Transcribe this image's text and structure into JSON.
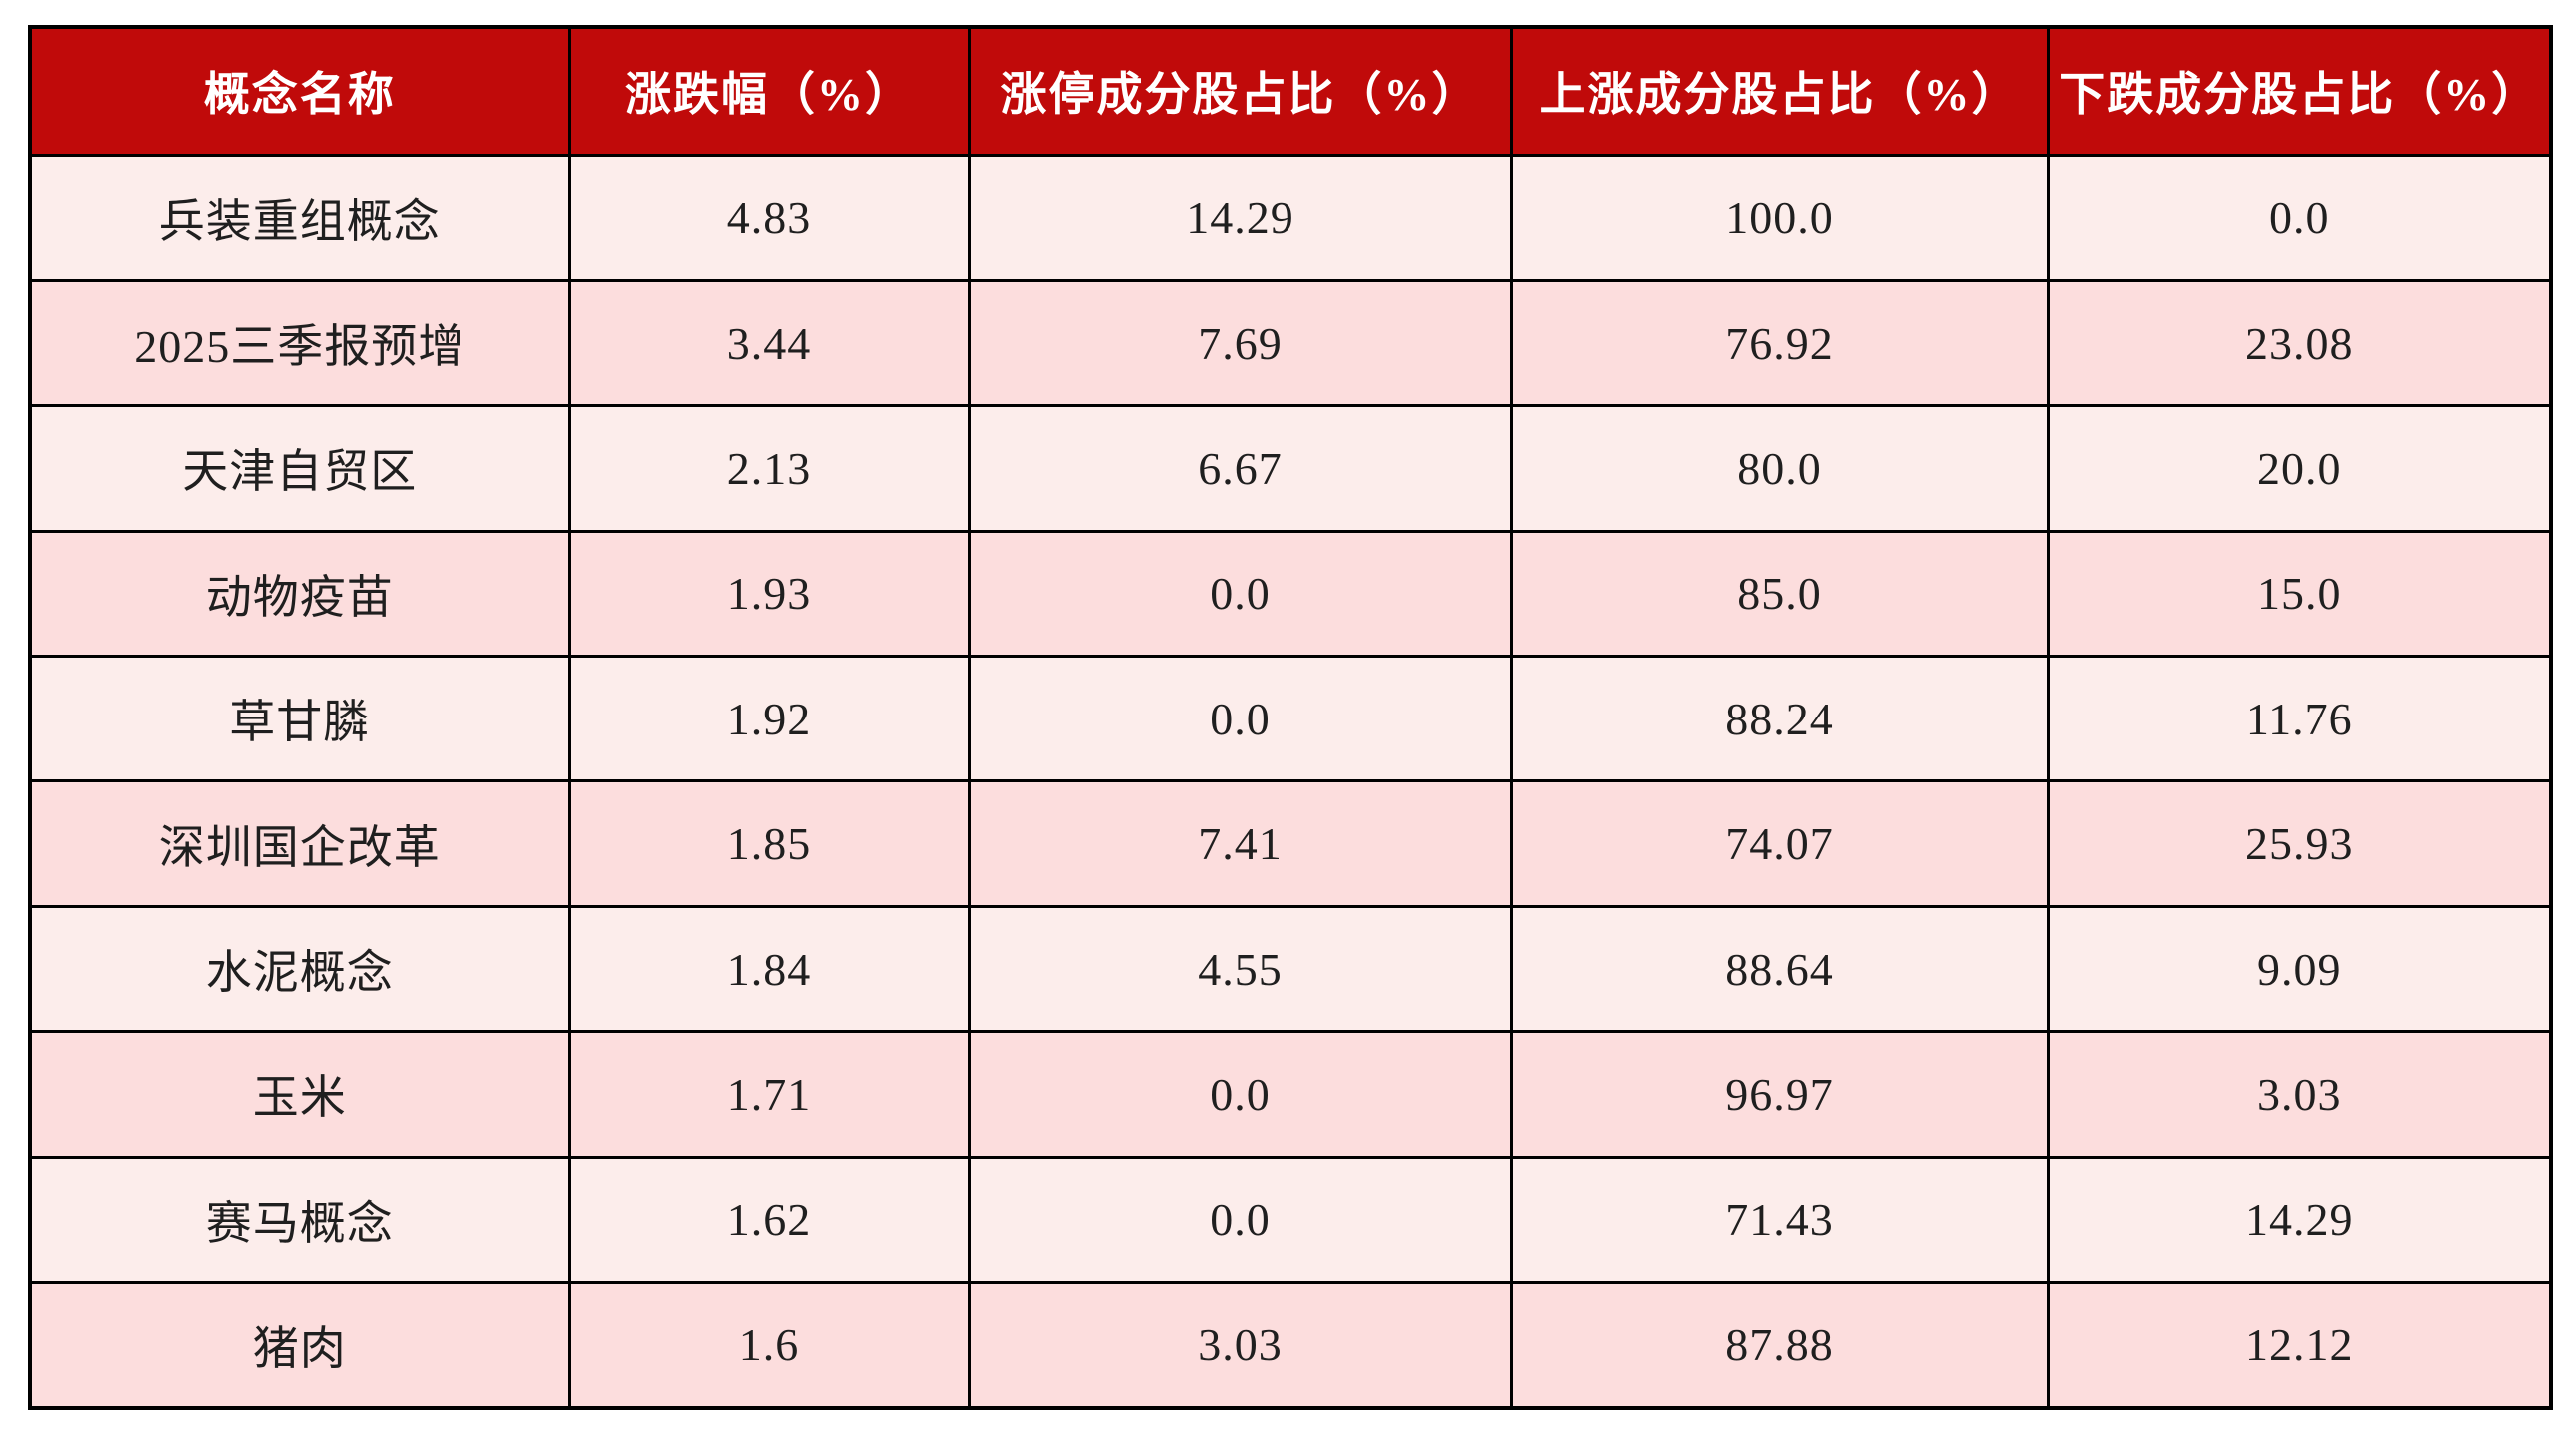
{
  "colors": {
    "header_bg": "#c00a0a",
    "header_text": "#ffffff",
    "row_light": "#fcedeb",
    "row_dark": "#fcdddd",
    "border": "#000000",
    "body_text": "#1f1f1f"
  },
  "chart_data": {
    "type": "table",
    "columns": [
      "概念名称",
      "涨跌幅（%）",
      "涨停成分股占比（%）",
      "上涨成分股占比（%）",
      "下跌成分股占比（%）"
    ],
    "rows": [
      [
        "兵装重组概念",
        "4.83",
        "14.29",
        "100.0",
        "0.0"
      ],
      [
        "2025三季报预增",
        "3.44",
        "7.69",
        "76.92",
        "23.08"
      ],
      [
        "天津自贸区",
        "2.13",
        "6.67",
        "80.0",
        "20.0"
      ],
      [
        "动物疫苗",
        "1.93",
        "0.0",
        "85.0",
        "15.0"
      ],
      [
        "草甘膦",
        "1.92",
        "0.0",
        "88.24",
        "11.76"
      ],
      [
        "深圳国企改革",
        "1.85",
        "7.41",
        "74.07",
        "25.93"
      ],
      [
        "水泥概念",
        "1.84",
        "4.55",
        "88.64",
        "9.09"
      ],
      [
        "玉米",
        "1.71",
        "0.0",
        "96.97",
        "3.03"
      ],
      [
        "赛马概念",
        "1.62",
        "0.0",
        "71.43",
        "14.29"
      ],
      [
        "猪肉",
        "1.6",
        "3.03",
        "87.88",
        "12.12"
      ]
    ],
    "layout": {
      "header_style": "dark-red band, white bold serif text",
      "row_striping": "odd rows lighter pink, even rows darker pink",
      "grid": true
    }
  }
}
